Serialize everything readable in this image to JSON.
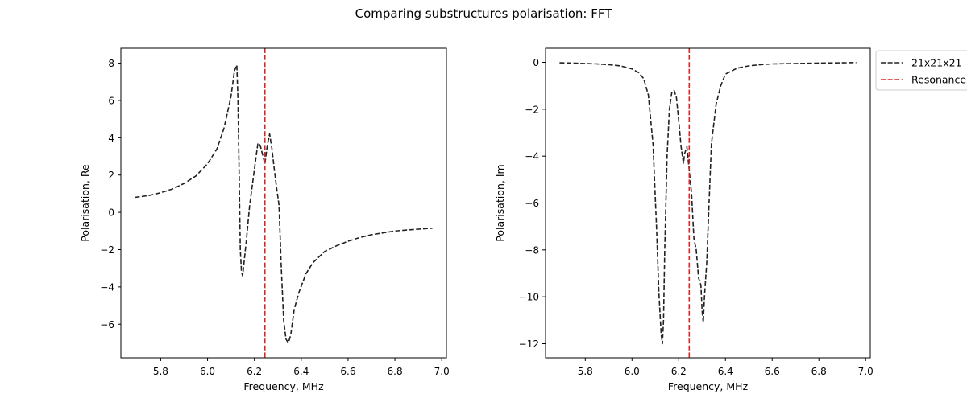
{
  "title": "Comparing substructures polarisation: FFT",
  "legend": {
    "placement": "outside-upper-right",
    "entries": [
      {
        "label": "21x21x21",
        "color": "#222222",
        "style": "dashed"
      },
      {
        "label": "Resonance",
        "color": "#d62728",
        "style": "dashed"
      }
    ]
  },
  "chart_data": [
    {
      "type": "line",
      "xlabel": "Frequency, MHz",
      "ylabel": "Polarisation, Re",
      "xlim": [
        5.63,
        7.02
      ],
      "ylim": [
        -7.8,
        8.8
      ],
      "xticks": [
        5.8,
        6.0,
        6.2,
        6.4,
        6.6,
        6.8,
        7.0
      ],
      "xtick_labels": [
        "5.8",
        "6.0",
        "6.2",
        "6.4",
        "6.6",
        "6.8",
        "7.0"
      ],
      "yticks": [
        8,
        6,
        4,
        2,
        0,
        -2,
        -4,
        -6
      ],
      "ytick_labels": [
        "8",
        "6",
        "4",
        "2",
        "0",
        "−2",
        "−4",
        "−6"
      ],
      "grid": false,
      "series": [
        {
          "name": "21x21x21",
          "color": "#222222",
          "style": "dashed",
          "x": [
            5.69,
            5.75,
            5.8,
            5.85,
            5.9,
            5.95,
            6.0,
            6.04,
            6.07,
            6.1,
            6.115,
            6.125,
            6.13,
            6.135,
            6.14,
            6.145,
            6.15,
            6.165,
            6.18,
            6.2,
            6.215,
            6.225,
            6.235,
            6.245,
            6.255,
            6.265,
            6.275,
            6.285,
            6.295,
            6.305,
            6.315,
            6.325,
            6.335,
            6.345,
            6.355,
            6.37,
            6.39,
            6.42,
            6.45,
            6.5,
            6.55,
            6.6,
            6.65,
            6.7,
            6.75,
            6.8,
            6.85,
            6.9,
            6.96
          ],
          "y": [
            0.8,
            0.9,
            1.05,
            1.25,
            1.55,
            1.95,
            2.6,
            3.4,
            4.5,
            6.2,
            7.6,
            7.9,
            6.0,
            2.0,
            -2.0,
            -3.2,
            -3.4,
            -1.6,
            0.4,
            2.3,
            3.7,
            3.6,
            3.1,
            2.6,
            3.6,
            4.2,
            3.4,
            2.3,
            1.3,
            0.4,
            -3.0,
            -5.8,
            -6.8,
            -7.0,
            -6.6,
            -5.2,
            -4.3,
            -3.3,
            -2.7,
            -2.1,
            -1.8,
            -1.55,
            -1.35,
            -1.2,
            -1.1,
            -1.0,
            -0.95,
            -0.9,
            -0.85
          ]
        },
        {
          "name": "Resonance",
          "color": "#d62728",
          "style": "dashed",
          "type": "vline",
          "x": 6.245
        }
      ]
    },
    {
      "type": "line",
      "xlabel": "Frequency, MHz",
      "ylabel": "Polarisation, Im",
      "xlim": [
        5.63,
        7.02
      ],
      "ylim": [
        -12.6,
        0.6
      ],
      "xticks": [
        5.8,
        6.0,
        6.2,
        6.4,
        6.6,
        6.8,
        7.0
      ],
      "xtick_labels": [
        "5.8",
        "6.0",
        "6.2",
        "6.4",
        "6.6",
        "6.8",
        "7.0"
      ],
      "yticks": [
        0,
        -2,
        -4,
        -6,
        -8,
        -10,
        -12
      ],
      "ytick_labels": [
        "0",
        "−2",
        "−4",
        "−6",
        "−8",
        "−10",
        "−12"
      ],
      "grid": false,
      "series": [
        {
          "name": "21x21x21",
          "color": "#222222",
          "style": "dashed",
          "x": [
            5.69,
            5.75,
            5.8,
            5.85,
            5.9,
            5.95,
            6.0,
            6.03,
            6.05,
            6.07,
            6.09,
            6.105,
            6.115,
            6.125,
            6.13,
            6.135,
            6.14,
            6.15,
            6.16,
            6.17,
            6.18,
            6.19,
            6.2,
            6.21,
            6.22,
            6.225,
            6.235,
            6.245,
            6.255,
            6.265,
            6.275,
            6.285,
            6.295,
            6.3,
            6.305,
            6.31,
            6.32,
            6.33,
            6.34,
            6.36,
            6.38,
            6.4,
            6.45,
            6.5,
            6.55,
            6.6,
            6.7,
            6.8,
            6.9,
            6.96
          ],
          "y": [
            -0.02,
            -0.03,
            -0.05,
            -0.07,
            -0.1,
            -0.15,
            -0.28,
            -0.45,
            -0.7,
            -1.4,
            -3.5,
            -7.0,
            -9.8,
            -11.6,
            -12.0,
            -11.0,
            -8.0,
            -4.0,
            -2.0,
            -1.3,
            -1.2,
            -1.5,
            -2.5,
            -3.6,
            -4.3,
            -3.9,
            -3.6,
            -4.6,
            -5.6,
            -7.5,
            -8.0,
            -9.2,
            -9.5,
            -10.6,
            -11.1,
            -10.0,
            -8.5,
            -6.0,
            -3.5,
            -1.8,
            -1.0,
            -0.5,
            -0.25,
            -0.15,
            -0.1,
            -0.07,
            -0.05,
            -0.03,
            -0.02,
            -0.01
          ]
        },
        {
          "name": "Resonance",
          "color": "#d62728",
          "style": "dashed",
          "type": "vline",
          "x": 6.245
        }
      ]
    }
  ]
}
